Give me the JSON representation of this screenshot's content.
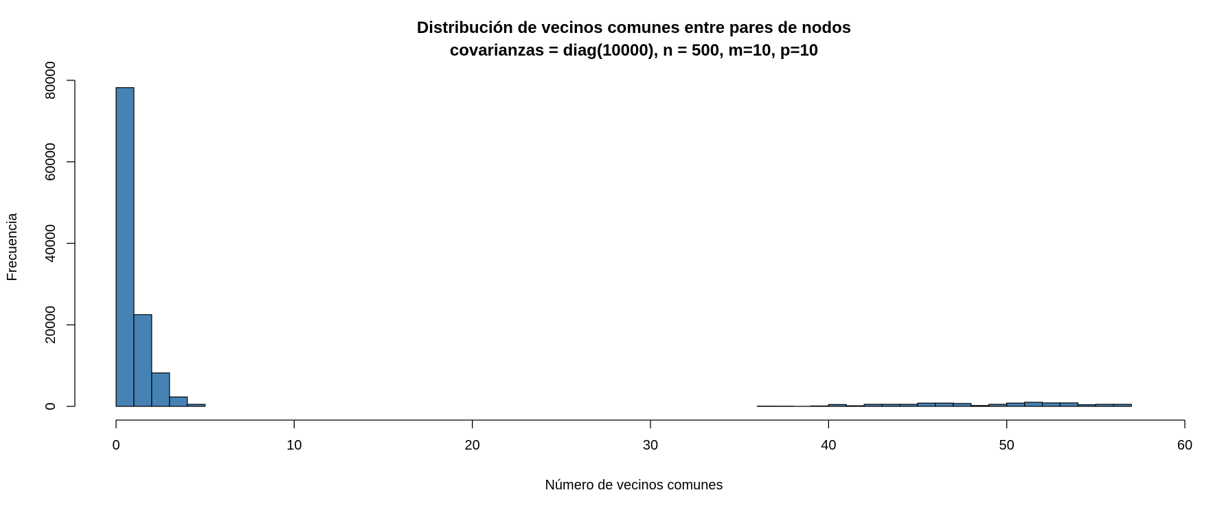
{
  "chart_data": {
    "type": "bar",
    "title": "Distribución de vecinos comunes entre pares de nodos",
    "subtitle": "covarianzas = diag(10000), n = 500, m=10, p=10",
    "xlabel": "Número de vecinos comunes",
    "ylabel": "Frecuencia",
    "xlim": [
      0,
      60
    ],
    "ylim": [
      0,
      80000
    ],
    "xticks": [
      0,
      10,
      20,
      30,
      40,
      50,
      60
    ],
    "yticks": [
      0,
      20000,
      40000,
      60000,
      80000
    ],
    "bin_width": 1,
    "bin_start": 0,
    "bar_color": "#4682B4",
    "counts": [
      78200,
      22500,
      8200,
      2300,
      500,
      0,
      0,
      0,
      0,
      0,
      0,
      0,
      0,
      0,
      0,
      0,
      0,
      0,
      0,
      0,
      0,
      0,
      0,
      0,
      0,
      0,
      0,
      0,
      0,
      0,
      0,
      0,
      0,
      0,
      0,
      0,
      60,
      50,
      10,
      100,
      450,
      150,
      500,
      500,
      500,
      800,
      800,
      700,
      200,
      500,
      800,
      1000,
      850,
      850,
      400,
      500,
      500,
      0
    ],
    "grid": false,
    "legend": "none"
  }
}
